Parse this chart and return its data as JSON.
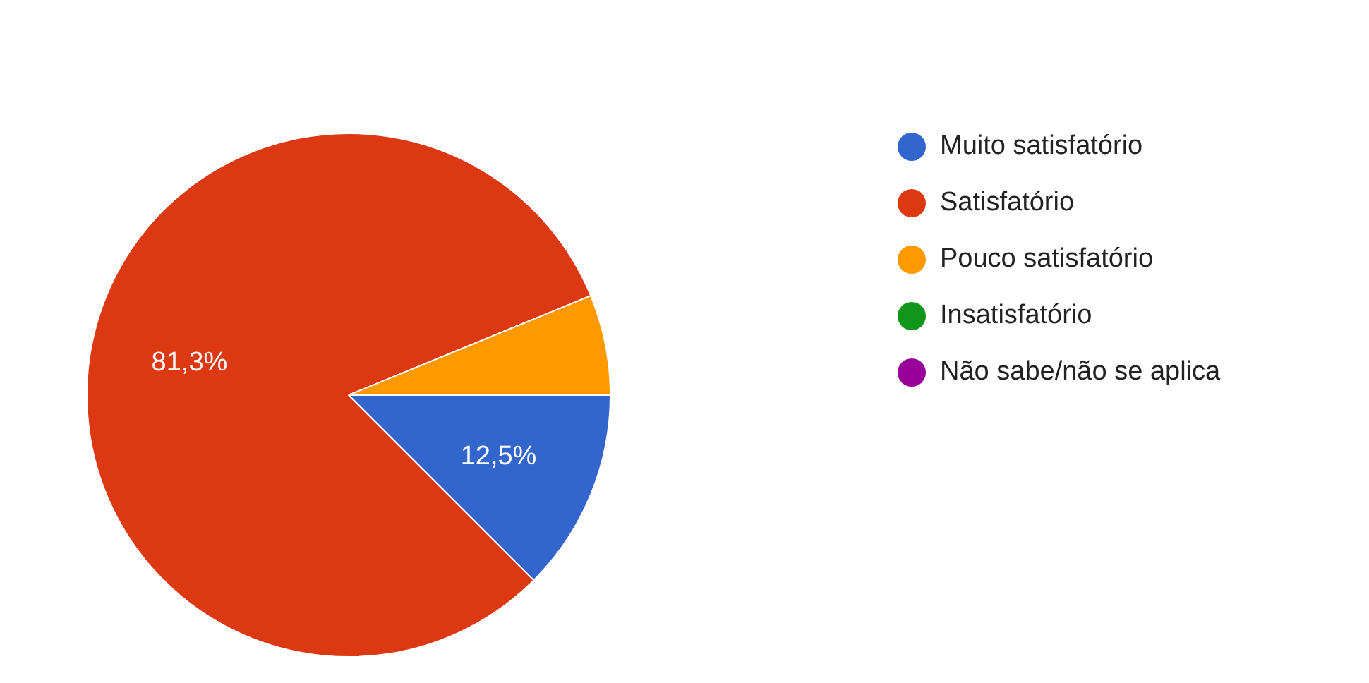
{
  "chart_data": {
    "type": "pie",
    "categories": [
      "Muito satisfatório",
      "Satisfatório",
      "Pouco satisfatório",
      "Insatisfatório",
      "Não sabe/não se aplica"
    ],
    "values": [
      12.5,
      81.3,
      6.2,
      0,
      0
    ],
    "colors": [
      "#3366cc",
      "#dc3912",
      "#ff9900",
      "#109618",
      "#990099"
    ],
    "value_labels": [
      "12,5%",
      "81,3%",
      null,
      null,
      null
    ],
    "legend": "right"
  }
}
